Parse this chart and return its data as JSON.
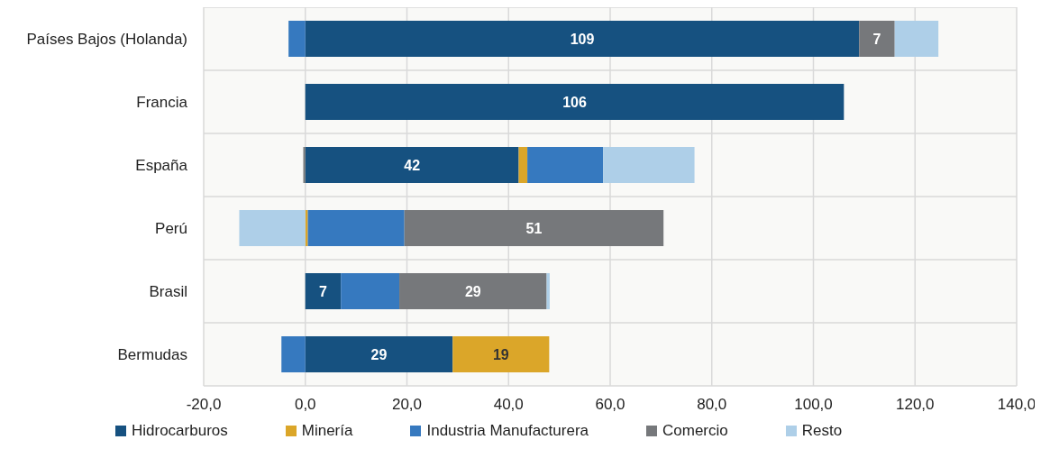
{
  "chart_data": {
    "type": "bar",
    "orientation": "horizontal",
    "stacked": true,
    "categories": [
      "Países Bajos (Holanda)",
      "Francia",
      "España",
      "Perú",
      "Brasil",
      "Bermudas"
    ],
    "series": [
      {
        "name": "Hidrocarburos",
        "color": "#165180",
        "values": [
          109,
          106,
          42,
          null,
          7,
          29
        ],
        "value_labels": [
          "109",
          "106",
          "42",
          null,
          "7",
          "29"
        ]
      },
      {
        "name": "Minería",
        "color": "#dba629",
        "values": [
          null,
          null,
          1.7,
          0.5,
          null,
          19
        ],
        "value_labels": [
          null,
          null,
          null,
          null,
          null,
          "19"
        ]
      },
      {
        "name": "Industria Manufacturera",
        "color": "#3679bf",
        "values": [
          -3.3,
          null,
          14.9,
          19,
          11.5,
          -4.7
        ]
      },
      {
        "name": "Comercio",
        "color": "#76787b",
        "values": [
          7,
          null,
          -0.4,
          51,
          29,
          null
        ],
        "value_labels": [
          "7",
          null,
          null,
          "51",
          "29",
          null
        ]
      },
      {
        "name": "Resto",
        "color": "#aecfe8",
        "values": [
          8.6,
          null,
          18,
          -13,
          0.6,
          null
        ]
      }
    ],
    "xlim": [
      -20,
      140
    ],
    "xticks": [
      {
        "value": -20,
        "label": "-20,0"
      },
      {
        "value": 0,
        "label": "0,0"
      },
      {
        "value": 20,
        "label": "20,0"
      },
      {
        "value": 40,
        "label": "40,0"
      },
      {
        "value": 60,
        "label": "60,0"
      },
      {
        "value": 80,
        "label": "80,0"
      },
      {
        "value": 100,
        "label": "100,0"
      },
      {
        "value": 120,
        "label": "120,0"
      },
      {
        "value": 140,
        "label": "140,0"
      }
    ],
    "grid": true,
    "legend": "bottom"
  }
}
